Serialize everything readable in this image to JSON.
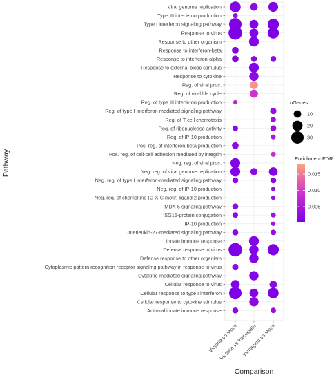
{
  "chart_data": {
    "type": "scatter",
    "subtype": "dot-plot",
    "xlabel": "Comparison",
    "ylabel": "Pathway",
    "categories": [
      "Victoria vs Mock",
      "Victoria vs Yamagata",
      "Yamagata vs Mock"
    ],
    "pathways": [
      "Viral genome replication",
      "Type III interferon production",
      "Type I interferon signaling pathway",
      "Response to virus",
      "Response to other organism",
      "Response to interferon-beta",
      "Response to interferon-alpha",
      "Response to external biotic stimulus",
      "Response to cytokine",
      "Reg. of viral proc.",
      "Reg. of viral life cycle",
      "Reg. of type III interferon production",
      "Reg. of type I interferon-mediated signaling pathway",
      "Reg. of T cell chemotaxis",
      "Reg. of ribonuclease activity",
      "Reg. of IP-10 production",
      "Pos. reg. of interferon-beta production",
      "Pos. reg. of cell-cell adhesion mediated by integrin",
      "Neg. reg. of viral proc.",
      "Neg. reg. of viral genome replication",
      "Neg. reg. of type I interferon-mediated signaling pathway",
      "Neg. reg. of IP-10 production",
      "Neg. reg. of chemokine (C-X-C motif) ligand 2 production",
      "MDA-5 signaling pathway",
      "ISG15-protein conjugation",
      "IP-10 production",
      "Interleukin-27-mediated signaling pathway",
      "Innate immune response",
      "Defense response to virus",
      "Defense response to other organism",
      "Cytoplasmic pattern recognition receptor signaling pathway in response to virus",
      "Cytokine-mediated signaling pathway",
      "Cellular response to virus",
      "Cellular response to type I interferon",
      "Cellular response to cytokine stimulus",
      "Antiviral innate immune response"
    ],
    "points": [
      {
        "pathway": "Viral genome replication",
        "comparison": "Victoria vs Mock",
        "nGenes": 22,
        "fdr": 0.001
      },
      {
        "pathway": "Viral genome replication",
        "comparison": "Victoria vs Yamagata",
        "nGenes": 10,
        "fdr": 0.002
      },
      {
        "pathway": "Viral genome replication",
        "comparison": "Yamagata vs Mock",
        "nGenes": 18,
        "fdr": 0.001
      },
      {
        "pathway": "Type III interferon production",
        "comparison": "Victoria vs Mock",
        "nGenes": 4,
        "fdr": 0.003
      },
      {
        "pathway": "Type I interferon signaling pathway",
        "comparison": "Victoria vs Mock",
        "nGenes": 30,
        "fdr": 0.0005
      },
      {
        "pathway": "Type I interferon signaling pathway",
        "comparison": "Victoria vs Yamagata",
        "nGenes": 14,
        "fdr": 0.001
      },
      {
        "pathway": "Type I interferon signaling pathway",
        "comparison": "Yamagata vs Mock",
        "nGenes": 24,
        "fdr": 0.0005
      },
      {
        "pathway": "Response to virus",
        "comparison": "Victoria vs Mock",
        "nGenes": 36,
        "fdr": 0.0005
      },
      {
        "pathway": "Response to virus",
        "comparison": "Victoria vs Yamagata",
        "nGenes": 14,
        "fdr": 0.001
      },
      {
        "pathway": "Response to virus",
        "comparison": "Yamagata vs Mock",
        "nGenes": 24,
        "fdr": 0.0005
      },
      {
        "pathway": "Response to other organism",
        "comparison": "Victoria vs Yamagata",
        "nGenes": 18,
        "fdr": 0.001
      },
      {
        "pathway": "Response to interferon-beta",
        "comparison": "Victoria vs Mock",
        "nGenes": 8,
        "fdr": 0.001
      },
      {
        "pathway": "Response to interferon-alpha",
        "comparison": "Victoria vs Mock",
        "nGenes": 8,
        "fdr": 0.001
      },
      {
        "pathway": "Response to interferon-alpha",
        "comparison": "Victoria vs Yamagata",
        "nGenes": 6,
        "fdr": 0.002
      },
      {
        "pathway": "Response to interferon-alpha",
        "comparison": "Yamagata vs Mock",
        "nGenes": 6,
        "fdr": 0.002
      },
      {
        "pathway": "Response to external biotic stimulus",
        "comparison": "Victoria vs Yamagata",
        "nGenes": 18,
        "fdr": 0.001
      },
      {
        "pathway": "Response to cytokine",
        "comparison": "Victoria vs Yamagata",
        "nGenes": 16,
        "fdr": 0.002
      },
      {
        "pathway": "Reg. of viral proc.",
        "comparison": "Victoria vs Yamagata",
        "nGenes": 12,
        "fdr": 0.017
      },
      {
        "pathway": "Reg. of viral life cycle",
        "comparison": "Victoria vs Yamagata",
        "nGenes": 12,
        "fdr": 0.009
      },
      {
        "pathway": "Reg. of type III interferon production",
        "comparison": "Victoria vs Mock",
        "nGenes": 3,
        "fdr": 0.007
      },
      {
        "pathway": "Reg. of type I interferon-mediated signaling pathway",
        "comparison": "Yamagata vs Mock",
        "nGenes": 7,
        "fdr": 0.003
      },
      {
        "pathway": "Reg. of T cell chemotaxis",
        "comparison": "Yamagata vs Mock",
        "nGenes": 5,
        "fdr": 0.004
      },
      {
        "pathway": "Reg. of ribonuclease activity",
        "comparison": "Victoria vs Mock",
        "nGenes": 5,
        "fdr": 0.002
      },
      {
        "pathway": "Reg. of ribonuclease activity",
        "comparison": "Yamagata vs Mock",
        "nGenes": 6,
        "fdr": 0.003
      },
      {
        "pathway": "Reg. of IP-10 production",
        "comparison": "Yamagata vs Mock",
        "nGenes": 4,
        "fdr": 0.005
      },
      {
        "pathway": "Pos. reg. of interferon-beta production",
        "comparison": "Victoria vs Mock",
        "nGenes": 8,
        "fdr": 0.002
      },
      {
        "pathway": "Pos. reg. of cell-cell adhesion mediated by integrin",
        "comparison": "Yamagata vs Mock",
        "nGenes": 4,
        "fdr": 0.008
      },
      {
        "pathway": "Neg. reg. of viral proc.",
        "comparison": "Victoria vs Mock",
        "nGenes": 18,
        "fdr": 0.001
      },
      {
        "pathway": "Neg. reg. of viral genome replication",
        "comparison": "Victoria vs Mock",
        "nGenes": 18,
        "fdr": 0.001
      },
      {
        "pathway": "Neg. reg. of viral genome replication",
        "comparison": "Victoria vs Yamagata",
        "nGenes": 9,
        "fdr": 0.002
      },
      {
        "pathway": "Neg. reg. of viral genome replication",
        "comparison": "Yamagata vs Mock",
        "nGenes": 14,
        "fdr": 0.001
      },
      {
        "pathway": "Neg. reg. of type I interferon-mediated signaling pathway",
        "comparison": "Victoria vs Mock",
        "nGenes": 6,
        "fdr": 0.002
      },
      {
        "pathway": "Neg. reg. of type I interferon-mediated signaling pathway",
        "comparison": "Yamagata vs Mock",
        "nGenes": 6,
        "fdr": 0.002
      },
      {
        "pathway": "Neg. reg. of IP-10 production",
        "comparison": "Yamagata vs Mock",
        "nGenes": 3,
        "fdr": 0.003
      },
      {
        "pathway": "Neg. reg. of chemokine (C-X-C motif) ligand 2 production",
        "comparison": "Yamagata vs Mock",
        "nGenes": 3,
        "fdr": 0.003
      },
      {
        "pathway": "MDA-5 signaling pathway",
        "comparison": "Victoria vs Mock",
        "nGenes": 6,
        "fdr": 0.002
      },
      {
        "pathway": "ISG15-protein conjugation",
        "comparison": "Victoria vs Mock",
        "nGenes": 5,
        "fdr": 0.002
      },
      {
        "pathway": "ISG15-protein conjugation",
        "comparison": "Yamagata vs Mock",
        "nGenes": 4,
        "fdr": 0.004
      },
      {
        "pathway": "IP-10 production",
        "comparison": "Yamagata vs Mock",
        "nGenes": 3,
        "fdr": 0.004
      },
      {
        "pathway": "Interleukin-27-mediated signaling pathway",
        "comparison": "Victoria vs Mock",
        "nGenes": 6,
        "fdr": 0.002
      },
      {
        "pathway": "Interleukin-27-mediated signaling pathway",
        "comparison": "Yamagata vs Mock",
        "nGenes": 5,
        "fdr": 0.003
      },
      {
        "pathway": "Innate immune response",
        "comparison": "Victoria vs Yamagata",
        "nGenes": 18,
        "fdr": 0.001
      },
      {
        "pathway": "Defense response to virus",
        "comparison": "Victoria vs Mock",
        "nGenes": 36,
        "fdr": 0.0005
      },
      {
        "pathway": "Defense response to virus",
        "comparison": "Victoria vs Yamagata",
        "nGenes": 16,
        "fdr": 0.001
      },
      {
        "pathway": "Defense response to virus",
        "comparison": "Yamagata vs Mock",
        "nGenes": 24,
        "fdr": 0.0005
      },
      {
        "pathway": "Defense response to other organism",
        "comparison": "Victoria vs Yamagata",
        "nGenes": 16,
        "fdr": 0.001
      },
      {
        "pathway": "Cytoplasmic pattern recognition receptor signaling pathway in response to virus",
        "comparison": "Victoria vs Mock",
        "nGenes": 7,
        "fdr": 0.002
      },
      {
        "pathway": "Cytokine-mediated signaling pathway",
        "comparison": "Victoria vs Yamagata",
        "nGenes": 16,
        "fdr": 0.001
      },
      {
        "pathway": "Cellular response to virus",
        "comparison": "Victoria vs Mock",
        "nGenes": 14,
        "fdr": 0.001
      },
      {
        "pathway": "Cellular response to virus",
        "comparison": "Yamagata vs Mock",
        "nGenes": 10,
        "fdr": 0.002
      },
      {
        "pathway": "Cellular response to type I interferon",
        "comparison": "Victoria vs Mock",
        "nGenes": 30,
        "fdr": 0.0005
      },
      {
        "pathway": "Cellular response to type I interferon",
        "comparison": "Victoria vs Yamagata",
        "nGenes": 14,
        "fdr": 0.001
      },
      {
        "pathway": "Cellular response to type I interferon",
        "comparison": "Yamagata vs Mock",
        "nGenes": 22,
        "fdr": 0.0005
      },
      {
        "pathway": "Cellular response to cytokine stimulus",
        "comparison": "Victoria vs Yamagata",
        "nGenes": 16,
        "fdr": 0.002
      },
      {
        "pathway": "Antiviral innate immune response",
        "comparison": "Victoria vs Mock",
        "nGenes": 6,
        "fdr": 0.002
      },
      {
        "pathway": "Antiviral innate immune response",
        "comparison": "Yamagata vs Mock",
        "nGenes": 5,
        "fdr": 0.003
      }
    ],
    "size_legend": {
      "title": "nGenes",
      "values": [
        10,
        20,
        30
      ]
    },
    "color_legend": {
      "title": "Enrichment.FDR",
      "ticks": [
        0.015,
        0.01,
        0.005
      ],
      "tick_labels": [
        "0.015",
        "0.010",
        "0.005"
      ],
      "range": [
        0.0001,
        0.018
      ],
      "low_color": "#7a00e6",
      "mid_color": "#cc33cc",
      "high_color": "#ff9f7f"
    },
    "grid": true,
    "legend_position": "right"
  }
}
